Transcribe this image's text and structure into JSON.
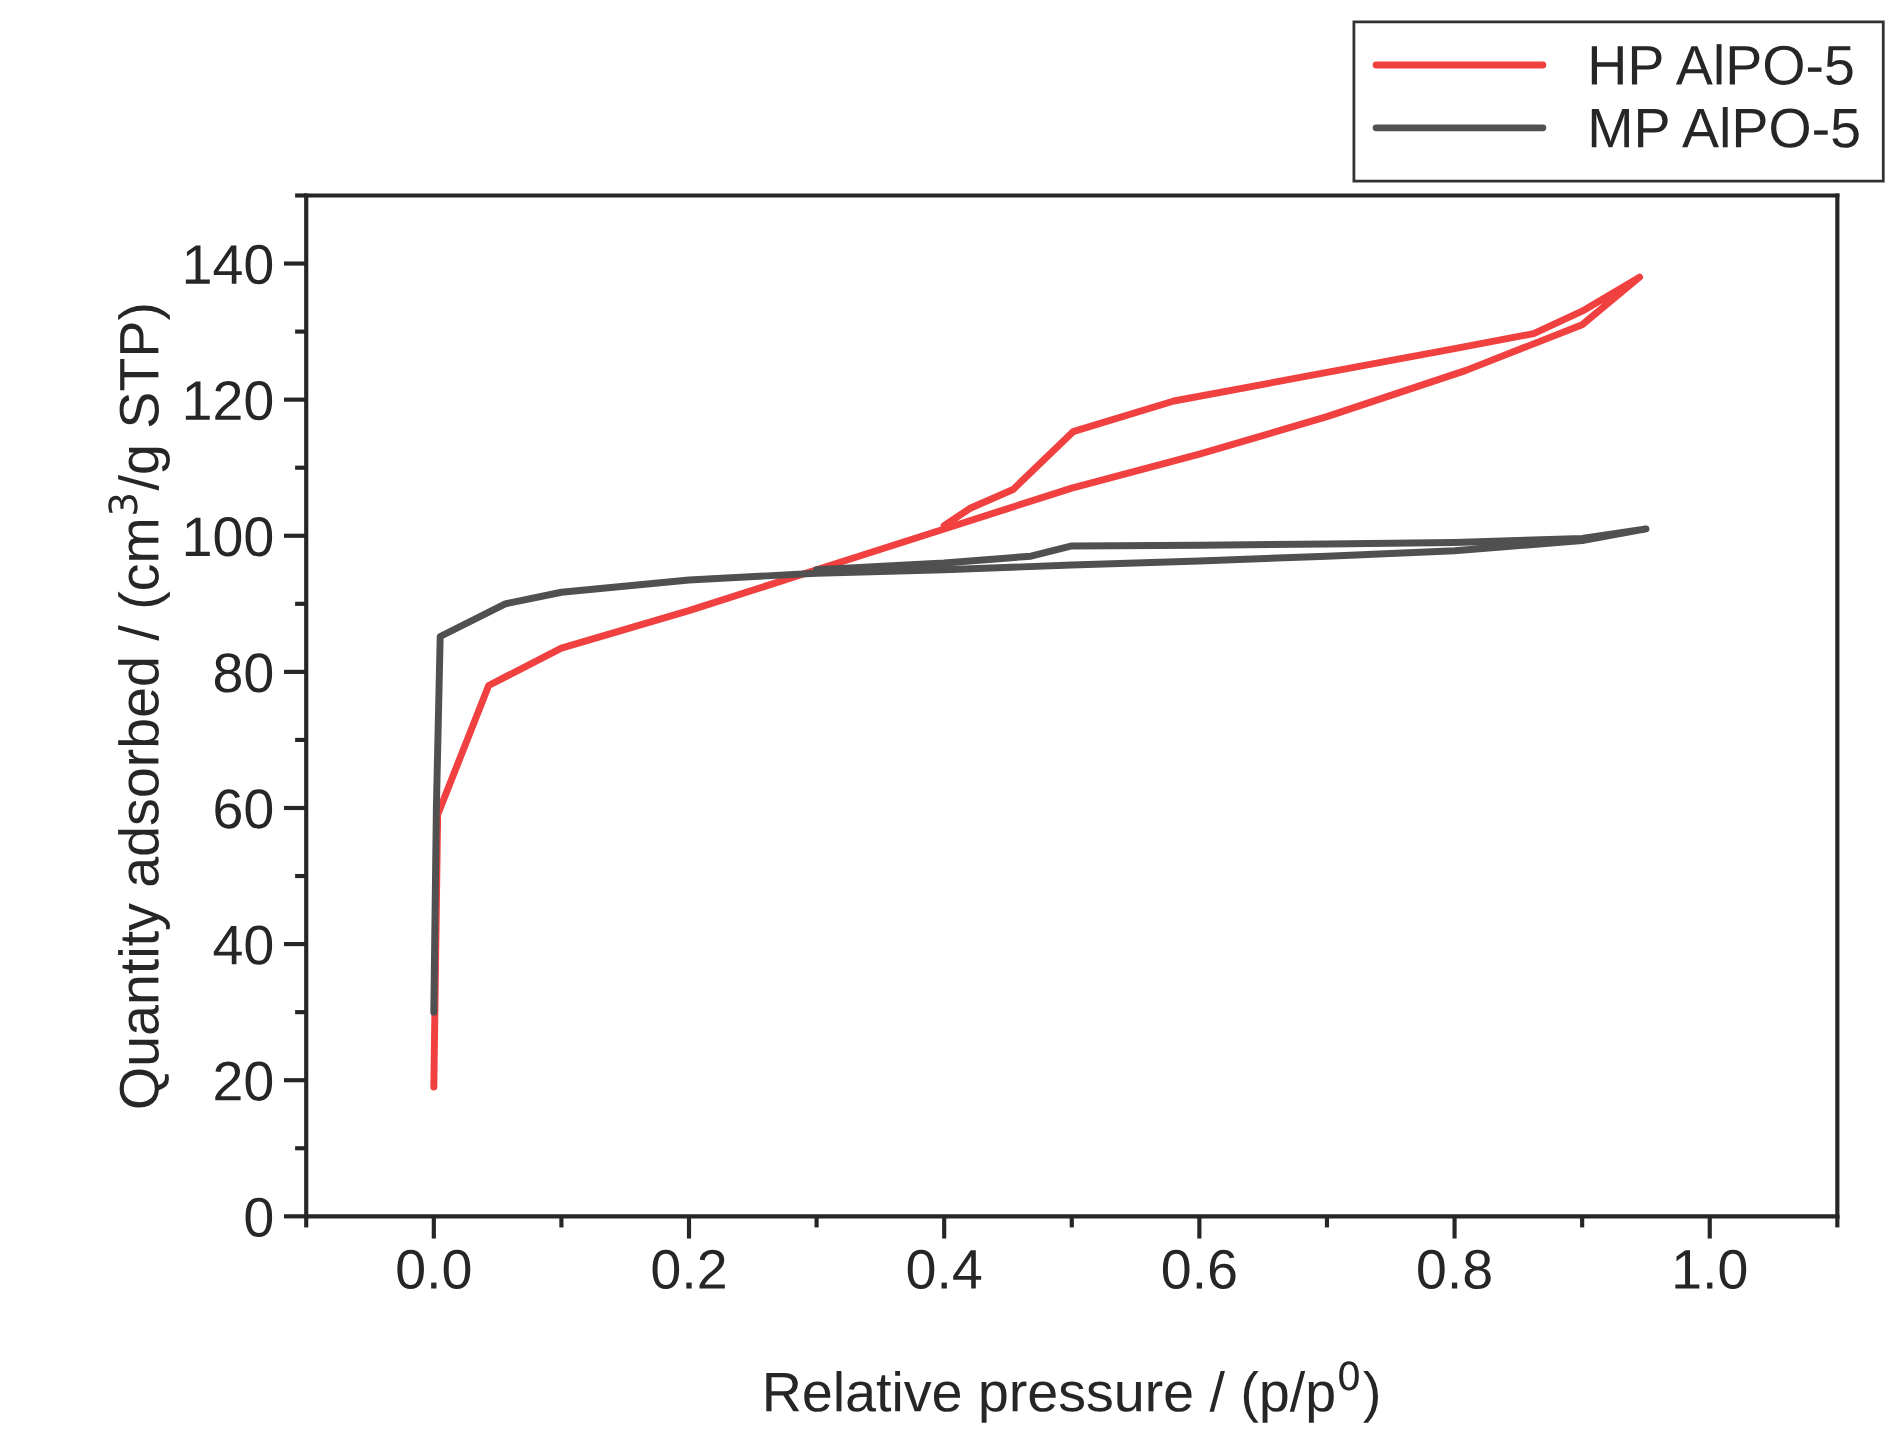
{
  "chart_data": {
    "type": "line",
    "xlabel": "Relative pressure / (p/p$^{0}$)",
    "ylabel": "Quantity adsorbed / (cm$^{3}$/g STP)",
    "xlim": [
      -0.1,
      1.1
    ],
    "ylim": [
      0,
      150
    ],
    "xticks": [
      {
        "value": 0,
        "label": "0.0"
      },
      {
        "value": 0.2,
        "label": "0.2"
      },
      {
        "value": 0.4,
        "label": "0.4"
      },
      {
        "value": 0.6,
        "label": "0.6"
      },
      {
        "value": 0.8,
        "label": "0.8"
      },
      {
        "value": 1,
        "label": "1.0"
      }
    ],
    "yticks": [
      0,
      20,
      40,
      60,
      80,
      100,
      120,
      140
    ],
    "grid": false,
    "legend": "top right",
    "marker": "none",
    "line_style": "solid",
    "series": [
      {
        "name": "HP AlPO-5",
        "color": "#f04040",
        "x": [
          0,
          0.003,
          0.043,
          0.1,
          0.2,
          0.3,
          0.4,
          0.5,
          0.6,
          0.7,
          0.809,
          0.9,
          0.945,
          0.9,
          0.862,
          0.8,
          0.7,
          0.58,
          0.501,
          0.454,
          0.42,
          0.4
        ],
        "values": [
          19,
          59,
          78,
          83.5,
          89,
          95,
          101,
          107,
          112,
          117.5,
          124.3,
          131,
          138,
          133,
          129.7,
          127.5,
          124,
          119.8,
          115.3,
          106.8,
          104,
          101.5
        ]
      },
      {
        "name": "MP AlPO-5",
        "color": "#505050",
        "x": [
          0,
          0.002,
          0.005,
          0.056,
          0.1,
          0.2,
          0.3,
          0.4,
          0.5,
          0.6,
          0.7,
          0.8,
          0.9,
          0.95,
          0.9,
          0.8,
          0.7,
          0.6,
          0.5,
          0.468,
          0.4,
          0.3
        ],
        "values": [
          30,
          60,
          85.2,
          90,
          91.7,
          93.5,
          94.5,
          95,
          95.7,
          96.3,
          97,
          97.8,
          99.3,
          101,
          99.6,
          99,
          98.8,
          98.6,
          98.5,
          97,
          96,
          95
        ]
      }
    ]
  }
}
